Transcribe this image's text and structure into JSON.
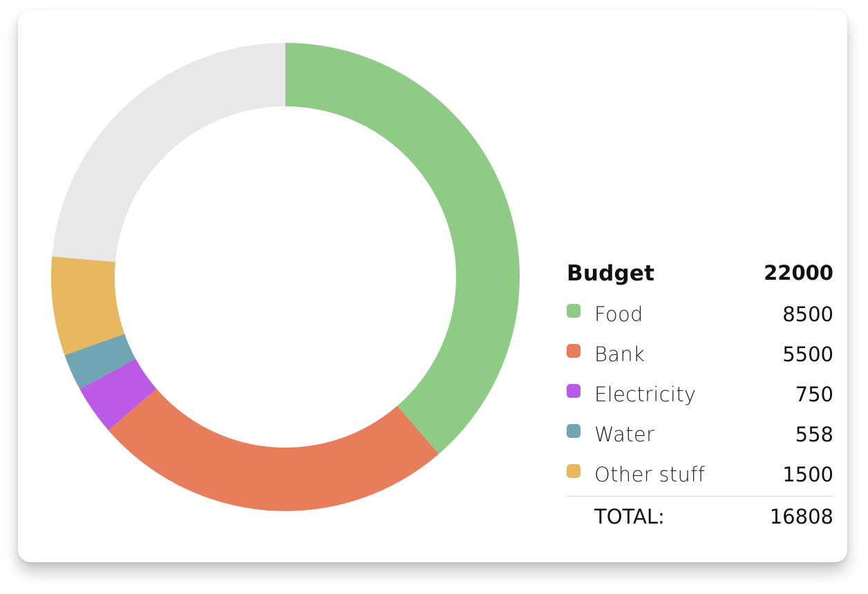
{
  "chart_data": {
    "type": "pie",
    "title": "Budget",
    "budget": 22000,
    "categories": [
      "Food",
      "Bank",
      "Electricity",
      "Water",
      "Other stuff"
    ],
    "values": [
      8500,
      5500,
      750,
      558,
      1500
    ],
    "colors": [
      "#8ecc86",
      "#e77d5a",
      "#bb5ae6",
      "#70a6b3",
      "#e8b85e"
    ],
    "remainder_color": "#e8e8e8",
    "total_label": "TOTAL:",
    "total": 16808,
    "legend_position": "right"
  }
}
